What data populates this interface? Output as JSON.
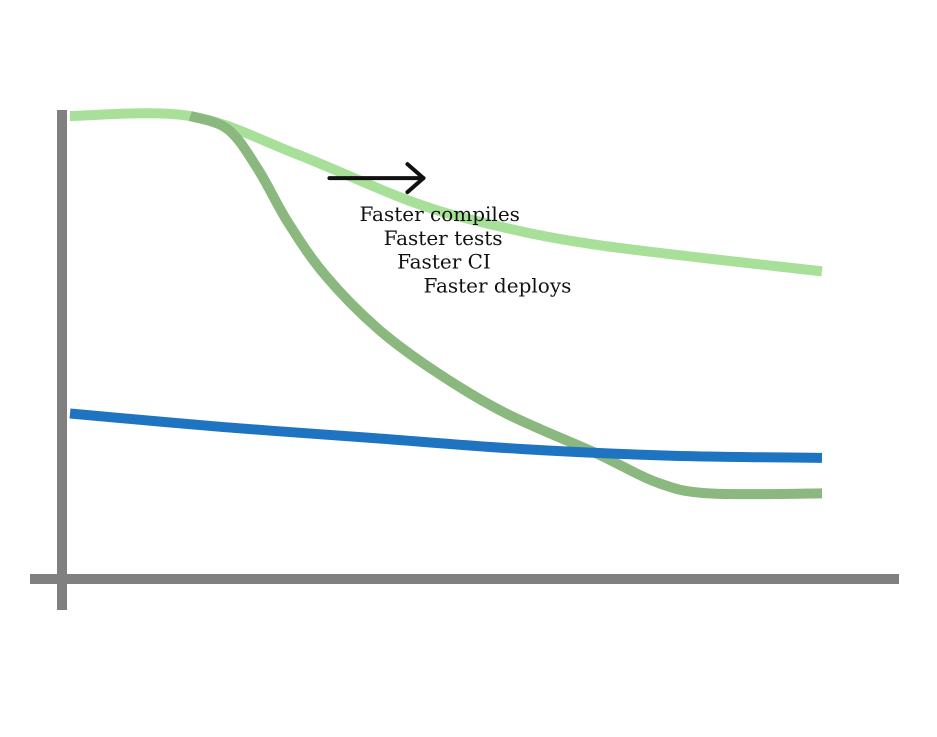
{
  "chart_data": {
    "type": "line",
    "title": "",
    "xlabel": "",
    "ylabel": "",
    "grid": false,
    "legend": "none",
    "xlim": [
      0,
      100
    ],
    "ylim": [
      0,
      100
    ],
    "axis_color": "#808080",
    "series": [
      {
        "color": "#a8e09a",
        "points": [
          [
            0,
            100
          ],
          [
            16,
            100
          ],
          [
            30,
            91.5
          ],
          [
            45,
            81
          ],
          [
            55,
            76
          ],
          [
            70,
            71
          ],
          [
            100,
            65
          ]
        ]
      },
      {
        "color": "#8ab87e",
        "points": [
          [
            16,
            100
          ],
          [
            21,
            97
          ],
          [
            25,
            88
          ],
          [
            29,
            76
          ],
          [
            34,
            64
          ],
          [
            41,
            52
          ],
          [
            49,
            42
          ],
          [
            58,
            33
          ],
          [
            70,
            24
          ],
          [
            78,
            17.5
          ],
          [
            85,
            15
          ],
          [
            100,
            15
          ]
        ]
      },
      {
        "color": "#1f74c1",
        "points": [
          [
            0,
            33
          ],
          [
            20,
            30
          ],
          [
            40,
            27.5
          ],
          [
            60,
            25
          ],
          [
            80,
            23.5
          ],
          [
            100,
            23
          ]
        ]
      }
    ],
    "annotation": {
      "arrow": {
        "from": [
          34.5,
          86
        ],
        "to": [
          47,
          86
        ],
        "color": "#111111"
      },
      "lines": [
        {
          "text": "Faster compiles",
          "x": 38.5,
          "y": 76.3
        },
        {
          "text": "Faster tests",
          "x": 41.7,
          "y": 71
        },
        {
          "text": "Faster CI",
          "x": 43.5,
          "y": 65.7
        },
        {
          "text": "Faster deploys",
          "x": 47,
          "y": 60.3
        }
      ]
    }
  }
}
